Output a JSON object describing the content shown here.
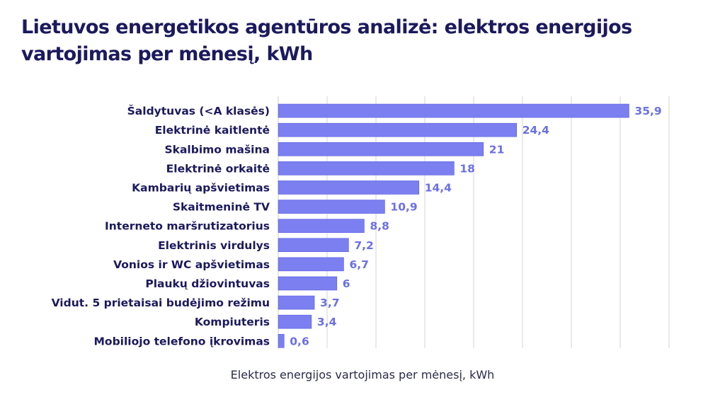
{
  "title": "Lietuvos energetikos agentūros analizė: elektros energijos vartojimas per mėnesį, kWh",
  "chart_data": {
    "type": "bar",
    "orientation": "horizontal",
    "title": "Lietuvos energetikos agentūros analizė: elektros energijos vartojimas per mėnesį, kWh",
    "xlabel": "Elektros energijos vartojimas per mėnesį, kWh",
    "ylabel": "",
    "categories": [
      "Šaldytuvas (<A klasės)",
      "Elektrinė kaitlentė",
      "Skalbimo mašina",
      "Elektrinė orkaitė",
      "Kambarių apšvietimas",
      "Skaitmeninė TV",
      "Interneto maršrutizatorius",
      "Elektrinis virdulys",
      "Vonios ir WC apšvietimas",
      "Plaukų džiovintuvas",
      "Vidut. 5 prietaisai budėjimo režimu",
      "Kompiuteris",
      "Mobiliojo telefono įkrovimas"
    ],
    "values": [
      35.9,
      24.4,
      21,
      18,
      14.4,
      10.9,
      8.8,
      7.2,
      6.7,
      6,
      3.7,
      3.4,
      0.6
    ],
    "value_labels": [
      "35,9",
      "24,4",
      "21",
      "18",
      "14,4",
      "10,9",
      "8,8",
      "7,2",
      "6,7",
      "6",
      "3,7",
      "3,4",
      "0,6"
    ],
    "xlim": [
      0,
      40
    ],
    "grid": true,
    "legend": "none",
    "colors": {
      "bar": "#7b7ff0",
      "bar_border": "#5a5ee0",
      "value_label": "#6b70e6",
      "category_label": "#1b1a5e",
      "title": "#1b1a5e",
      "grid": "#d6d6d6"
    }
  }
}
